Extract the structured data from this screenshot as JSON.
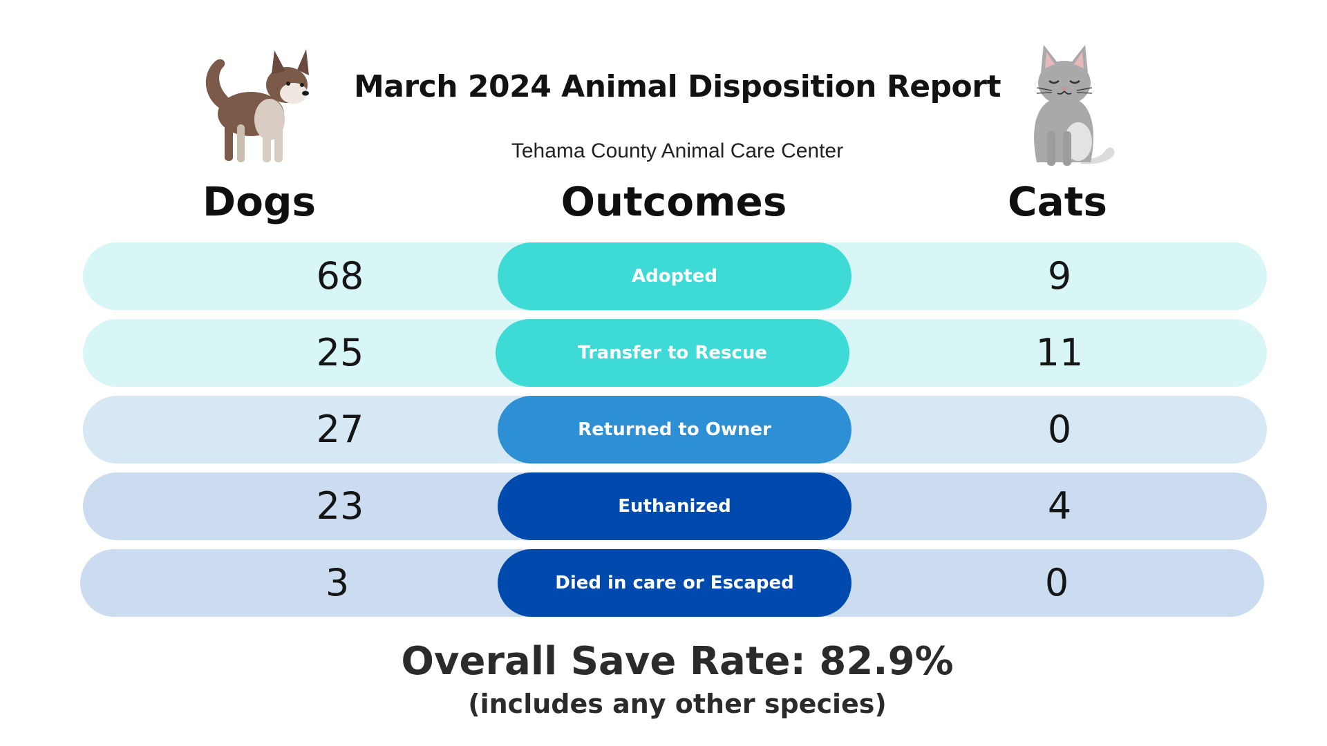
{
  "header": {
    "title": "March 2024 Animal Disposition Report",
    "subtitle": "Tehama County Animal Care Center"
  },
  "columns": {
    "dogs": "Dogs",
    "outcomes": "Outcomes",
    "cats": "Cats"
  },
  "rows": [
    {
      "outcome": "Adopted",
      "dogs": "68",
      "cats": "9",
      "row_color": "#d8f6f5",
      "pill_color": "#3ddad6"
    },
    {
      "outcome": "Transfer to Rescue",
      "dogs": "25",
      "cats": "11",
      "row_color": "#d8f6f5",
      "pill_color": "#3ddad6"
    },
    {
      "outcome": "Returned to Owner",
      "dogs": "27",
      "cats": "0",
      "row_color": "#d7e8f5",
      "pill_color": "#2e90d4"
    },
    {
      "outcome": "Euthanized",
      "dogs": "23",
      "cats": "4",
      "row_color": "#ccdcf0",
      "pill_color": "#004aad"
    },
    {
      "outcome": "Died in care or Escaped",
      "dogs": "3",
      "cats": "0",
      "row_color": "#ccdcf0",
      "pill_color": "#004aad"
    }
  ],
  "footer": {
    "save_rate": "Overall Save Rate: 82.9%",
    "note": "(includes any other species)"
  },
  "icons": {
    "dog": "dog-illustration",
    "cat": "cat-illustration"
  }
}
